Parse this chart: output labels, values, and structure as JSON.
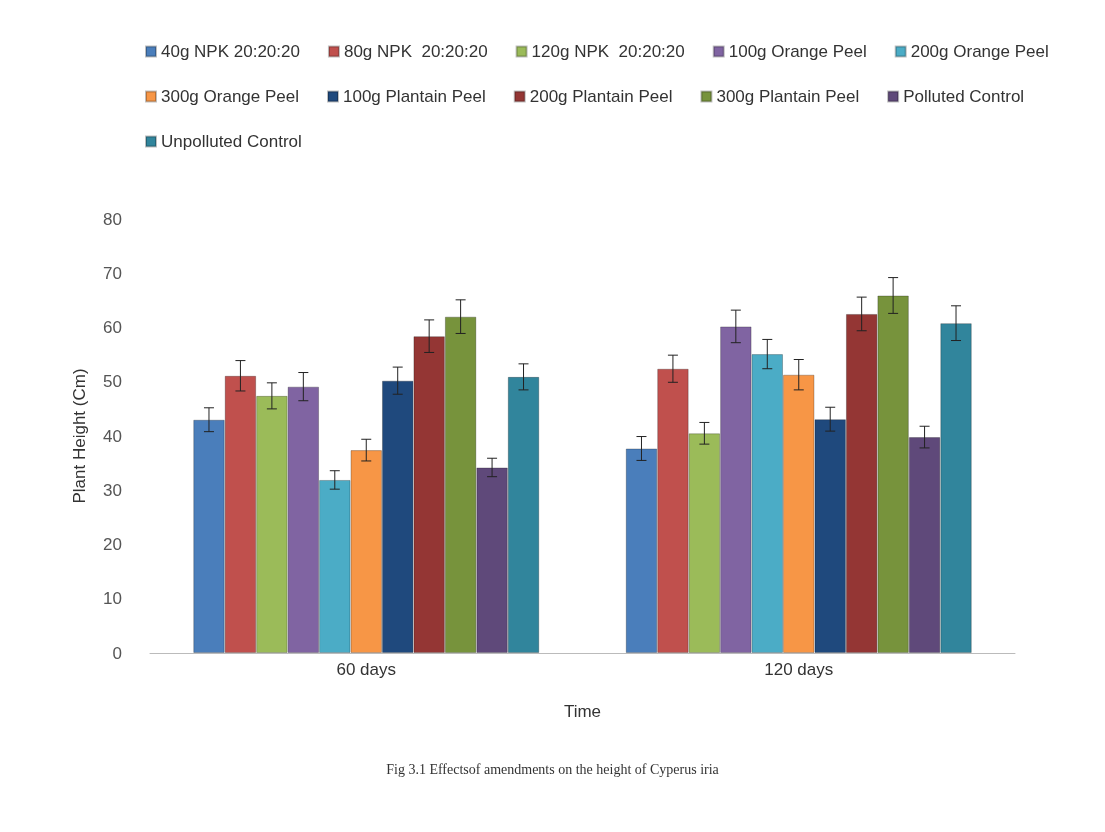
{
  "chart_data": {
    "type": "bar",
    "xlabel": "Time",
    "ylabel": "Plant Height (Cm)",
    "categories": [
      "60 days",
      "120 days"
    ],
    "ylim": [
      0,
      80
    ],
    "yticks": [
      0,
      10,
      20,
      30,
      40,
      50,
      60,
      70,
      80
    ],
    "grid": false,
    "legend": "top",
    "annotations": [
      "Fig 3.1 Effectsof amendments on the height of Cyperus iria"
    ],
    "series": [
      {
        "name": "40g NPK 20:20:20",
        "color": "#4a7ebb",
        "values": [
          43,
          37.7
        ],
        "errors": [
          2.2,
          2.2
        ]
      },
      {
        "name": "80g NPK  20:20:20",
        "color": "#c0504d",
        "values": [
          51.1,
          52.4
        ],
        "errors": [
          2.8,
          2.5
        ]
      },
      {
        "name": "120g NPK  20:20:20",
        "color": "#9bbb59",
        "values": [
          47.4,
          40.5
        ],
        "errors": [
          2.4,
          2
        ]
      },
      {
        "name": "100g Orange Peel",
        "color": "#8064a2",
        "values": [
          49.1,
          60.2
        ],
        "errors": [
          2.6,
          3
        ]
      },
      {
        "name": "200g Orange Peel",
        "color": "#4bacc6",
        "values": [
          31.9,
          55.1
        ],
        "errors": [
          1.7,
          2.7
        ]
      },
      {
        "name": "300g Orange Peel",
        "color": "#f79646",
        "values": [
          37.4,
          51.3
        ],
        "errors": [
          2,
          2.8
        ]
      },
      {
        "name": "100g Plantain Peel",
        "color": "#1f497d",
        "values": [
          50.2,
          43.1
        ],
        "errors": [
          2.5,
          2.2
        ]
      },
      {
        "name": "200g Plantain Peel",
        "color": "#943634",
        "values": [
          58.4,
          62.5
        ],
        "errors": [
          3,
          3.1
        ]
      },
      {
        "name": "300g Plantain Peel",
        "color": "#77933c",
        "values": [
          62,
          65.9
        ],
        "errors": [
          3.1,
          3.3
        ]
      },
      {
        "name": "Polluted Control",
        "color": "#5f497a",
        "values": [
          34.2,
          39.8
        ],
        "errors": [
          1.7,
          2
        ]
      },
      {
        "name": "Unpolluted Control",
        "color": "#31859c",
        "values": [
          50.9,
          60.8
        ],
        "errors": [
          2.4,
          3.2
        ]
      }
    ]
  }
}
